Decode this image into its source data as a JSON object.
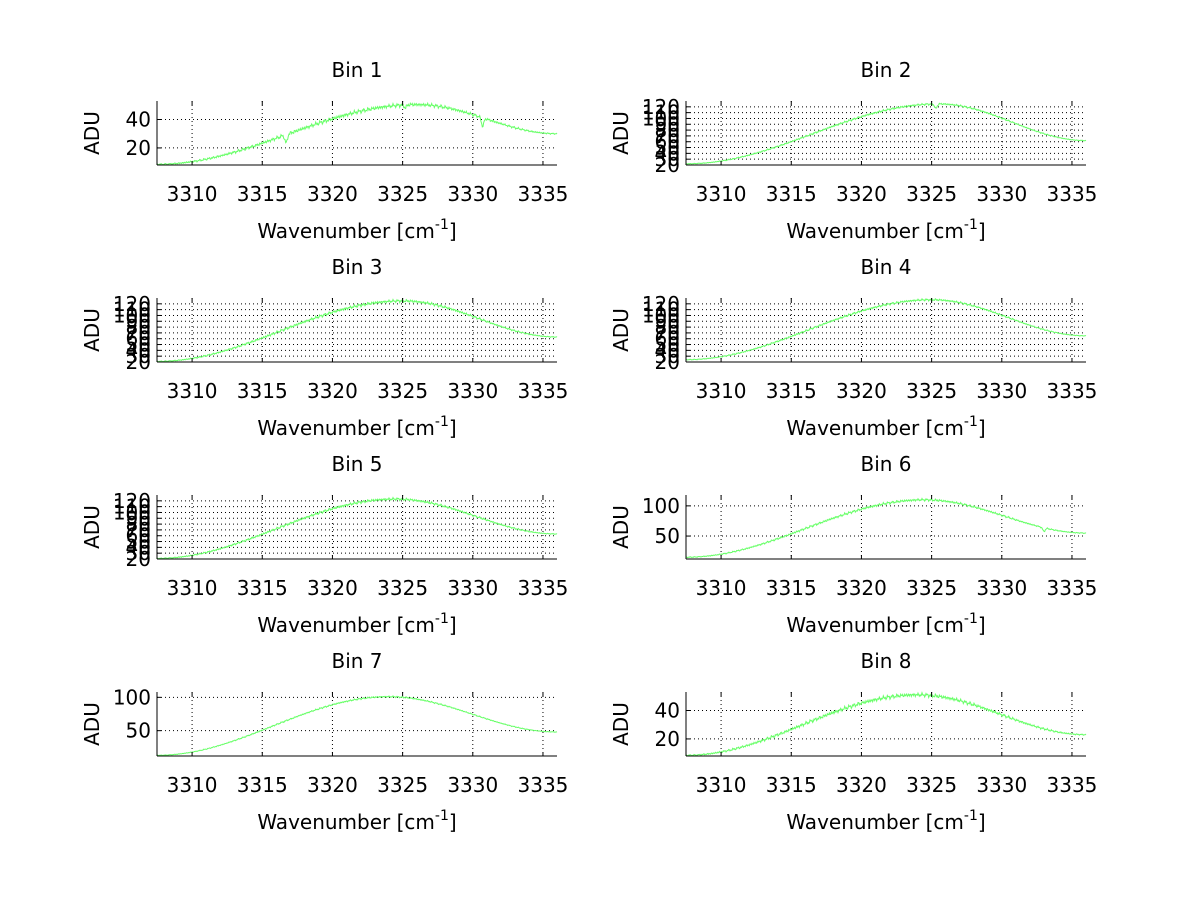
{
  "figure_title": "",
  "chart_data": [
    {
      "type": "line",
      "title": "Bin 1",
      "xlabel_main": "Wavenumber [cm",
      "xlabel_sup": "-1",
      "xlabel_close": "]",
      "ylabel": "ADU",
      "xlim": [
        3307.5,
        3336
      ],
      "ylim": [
        8,
        53
      ],
      "xticks": [
        3310,
        3315,
        3320,
        3325,
        3330,
        3335
      ],
      "yticks": [
        20,
        40
      ],
      "grid": true,
      "line_color": "#66ff66",
      "curve": {
        "start": 8.5,
        "peak_x": 3326,
        "peak_y": 50.5,
        "end": 30,
        "noise": 1.2
      },
      "dips": [
        [
          3316.7,
          6
        ],
        [
          3330.7,
          6
        ],
        [
          3325.2,
          2
        ]
      ]
    },
    {
      "type": "line",
      "title": "Bin 2",
      "xlabel_main": "Wavenumber [cm",
      "xlabel_sup": "-1",
      "xlabel_close": "]",
      "ylabel": "ADU",
      "xlim": [
        3307.5,
        3336
      ],
      "ylim": [
        20,
        130
      ],
      "xticks": [
        3310,
        3315,
        3320,
        3325,
        3330,
        3335
      ],
      "yticks": [
        20,
        30,
        40,
        50,
        60,
        70,
        80,
        90,
        100,
        110,
        120
      ],
      "grid": true,
      "line_color": "#66ff66",
      "curve": {
        "start": 22,
        "peak_x": 3325.5,
        "peak_y": 125,
        "end": 62,
        "noise": 1.5
      },
      "dips": [
        [
          3325.3,
          8
        ]
      ]
    },
    {
      "type": "line",
      "title": "Bin 3",
      "xlabel_main": "Wavenumber [cm",
      "xlabel_sup": "-1",
      "xlabel_close": "]",
      "ylabel": "ADU",
      "xlim": [
        3307.5,
        3336
      ],
      "ylim": [
        20,
        130
      ],
      "xticks": [
        3310,
        3315,
        3320,
        3325,
        3330,
        3335
      ],
      "yticks": [
        20,
        30,
        40,
        50,
        60,
        70,
        80,
        90,
        100,
        110,
        120
      ],
      "grid": true,
      "line_color": "#66ff66",
      "curve": {
        "start": 21,
        "peak_x": 3325,
        "peak_y": 125,
        "end": 63,
        "noise": 2.2
      },
      "dips": []
    },
    {
      "type": "line",
      "title": "Bin 4",
      "xlabel_main": "Wavenumber [cm",
      "xlabel_sup": "-1",
      "xlabel_close": "]",
      "ylabel": "ADU",
      "xlim": [
        3307.5,
        3336
      ],
      "ylim": [
        20,
        130
      ],
      "xticks": [
        3310,
        3315,
        3320,
        3325,
        3330,
        3335
      ],
      "yticks": [
        20,
        30,
        40,
        50,
        60,
        70,
        80,
        90,
        100,
        110,
        120
      ],
      "grid": true,
      "line_color": "#66ff66",
      "curve": {
        "start": 24,
        "peak_x": 3325,
        "peak_y": 127,
        "end": 65,
        "noise": 1.6
      },
      "dips": []
    },
    {
      "type": "line",
      "title": "Bin 5",
      "xlabel_main": "Wavenumber [cm",
      "xlabel_sup": "-1",
      "xlabel_close": "]",
      "ylabel": "ADU",
      "xlim": [
        3307.5,
        3336
      ],
      "ylim": [
        20,
        130
      ],
      "xticks": [
        3310,
        3315,
        3320,
        3325,
        3330,
        3335
      ],
      "yticks": [
        20,
        30,
        40,
        50,
        60,
        70,
        80,
        90,
        100,
        110,
        120
      ],
      "grid": true,
      "line_color": "#66ff66",
      "curve": {
        "start": 21,
        "peak_x": 3324.5,
        "peak_y": 123,
        "end": 63,
        "noise": 2.0
      },
      "dips": []
    },
    {
      "type": "line",
      "title": "Bin 6",
      "xlabel_main": "Wavenumber [cm",
      "xlabel_sup": "-1",
      "xlabel_close": "]",
      "ylabel": "ADU",
      "xlim": [
        3307.5,
        3336
      ],
      "ylim": [
        12,
        118
      ],
      "xticks": [
        3310,
        3315,
        3320,
        3325,
        3330,
        3335
      ],
      "yticks": [
        50,
        100
      ],
      "grid": true,
      "line_color": "#66ff66",
      "curve": {
        "start": 15,
        "peak_x": 3324.5,
        "peak_y": 110,
        "end": 55,
        "noise": 1.8
      },
      "dips": [
        [
          3333,
          6
        ]
      ]
    },
    {
      "type": "line",
      "title": "Bin 7",
      "xlabel_main": "Wavenumber [cm",
      "xlabel_sup": "-1",
      "xlabel_close": "]",
      "ylabel": "ADU",
      "xlim": [
        3307.5,
        3336
      ],
      "ylim": [
        12,
        108
      ],
      "xticks": [
        3310,
        3315,
        3320,
        3325,
        3330,
        3335
      ],
      "yticks": [
        50,
        100
      ],
      "grid": true,
      "line_color": "#66ff66",
      "curve": {
        "start": 13,
        "peak_x": 3324,
        "peak_y": 101,
        "end": 48,
        "noise": 1.0
      },
      "dips": []
    },
    {
      "type": "line",
      "title": "Bin 8",
      "xlabel_main": "Wavenumber [cm",
      "xlabel_sup": "-1",
      "xlabel_close": "]",
      "ylabel": "ADU",
      "xlim": [
        3307.5,
        3336
      ],
      "ylim": [
        8,
        53
      ],
      "xticks": [
        3310,
        3315,
        3320,
        3325,
        3330,
        3335
      ],
      "yticks": [
        20,
        40
      ],
      "grid": true,
      "line_color": "#66ff66",
      "curve": {
        "start": 8.5,
        "peak_x": 3324,
        "peak_y": 51,
        "end": 23,
        "noise": 1.2
      },
      "dips": []
    }
  ]
}
